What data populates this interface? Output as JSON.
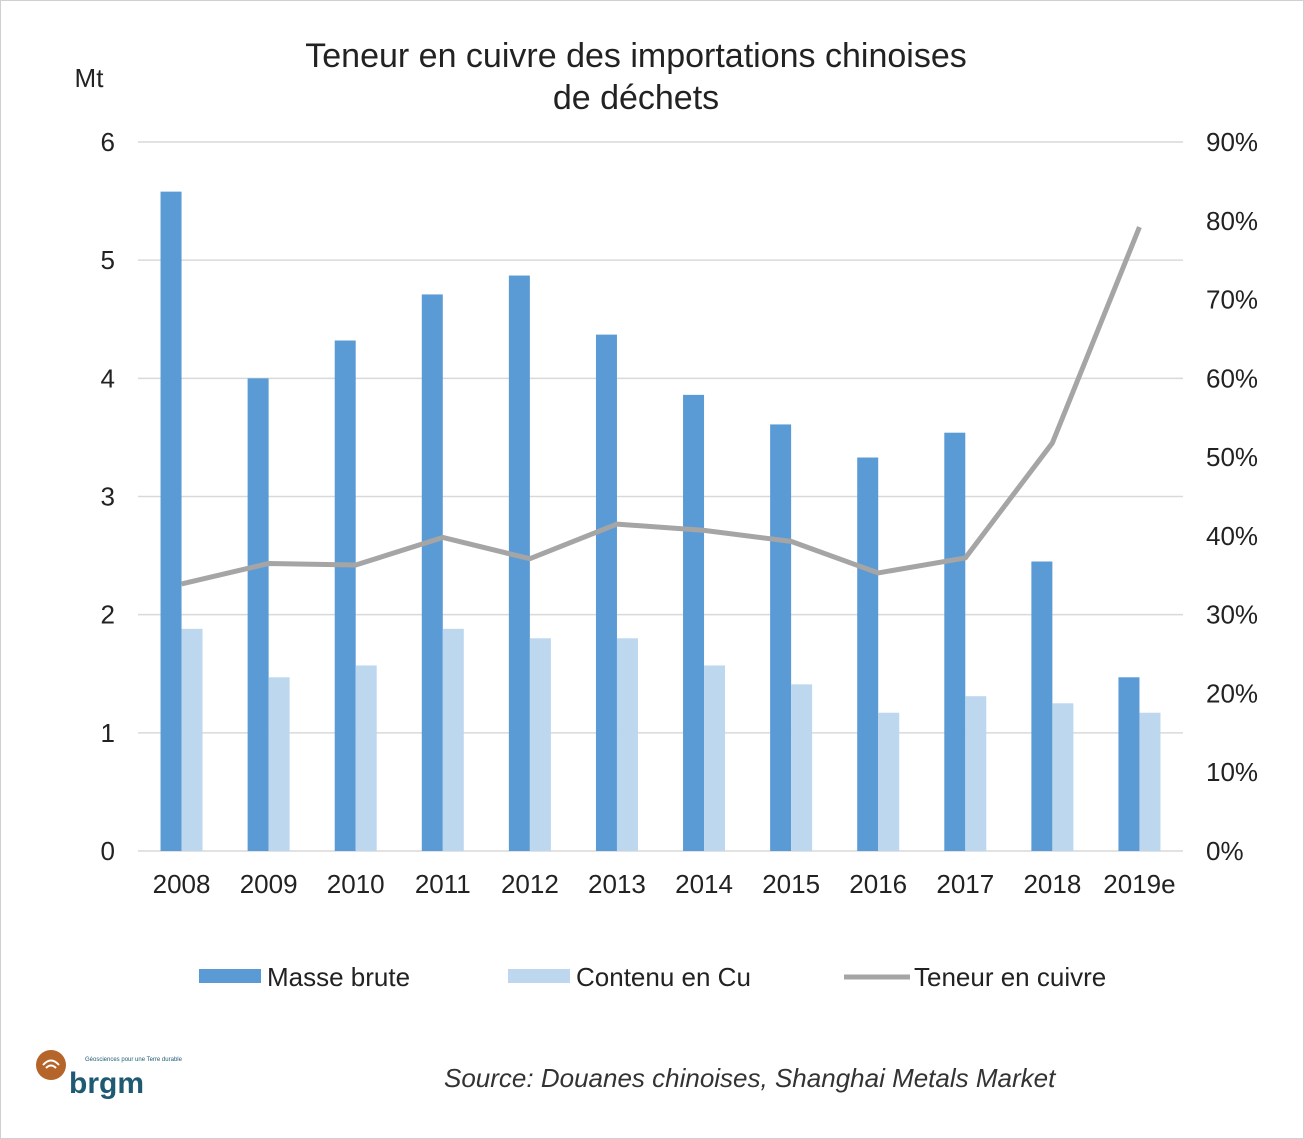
{
  "chart_data": {
    "type": "bar",
    "title": "Teneur en cuivre des importations chinoises de déchets",
    "title_lines": [
      "Teneur  en cuivre des importations  chinoises",
      "de déchets"
    ],
    "ylabel": "Mt",
    "ylim": [
      0,
      6
    ],
    "yticks": [
      "0",
      "1",
      "2",
      "3",
      "4",
      "5",
      "6"
    ],
    "y2lim": [
      0,
      90
    ],
    "y2ticks": [
      "0%",
      "10%",
      "20%",
      "30%",
      "40%",
      "50%",
      "60%",
      "70%",
      "80%",
      "90%"
    ],
    "grid": true,
    "legend_position": "bottom",
    "categories": [
      "2008",
      "2009",
      "2010",
      "2011",
      "2012",
      "2013",
      "2014",
      "2015",
      "2016",
      "2017",
      "2018",
      "2019e"
    ],
    "series": [
      {
        "name": "Masse brute",
        "type": "bar",
        "axis": "left",
        "color": "#5b9bd5",
        "values": [
          5.58,
          4.0,
          4.32,
          4.71,
          4.87,
          4.37,
          3.86,
          3.61,
          3.33,
          3.54,
          2.45,
          1.47
        ]
      },
      {
        "name": "Contenu en Cu",
        "type": "bar",
        "axis": "left",
        "color": "#bdd7ee",
        "values": [
          1.88,
          1.47,
          1.57,
          1.88,
          1.8,
          1.8,
          1.57,
          1.41,
          1.17,
          1.31,
          1.25,
          1.17
        ]
      },
      {
        "name": "Teneur en cuivre",
        "type": "line",
        "axis": "right",
        "unit": "%",
        "color": "#a5a5a5",
        "values": [
          33.9,
          36.5,
          36.3,
          39.8,
          37.1,
          41.5,
          40.7,
          39.3,
          35.3,
          37.2,
          51.8,
          79.2
        ]
      }
    ]
  },
  "source": "Source: Douanes chinoises, Shanghai Metals Market",
  "logo": {
    "text": "brgm",
    "tagline": "Géosciences pour une Terre durable",
    "color": "#1f5a73",
    "accent": "#b5652a"
  }
}
